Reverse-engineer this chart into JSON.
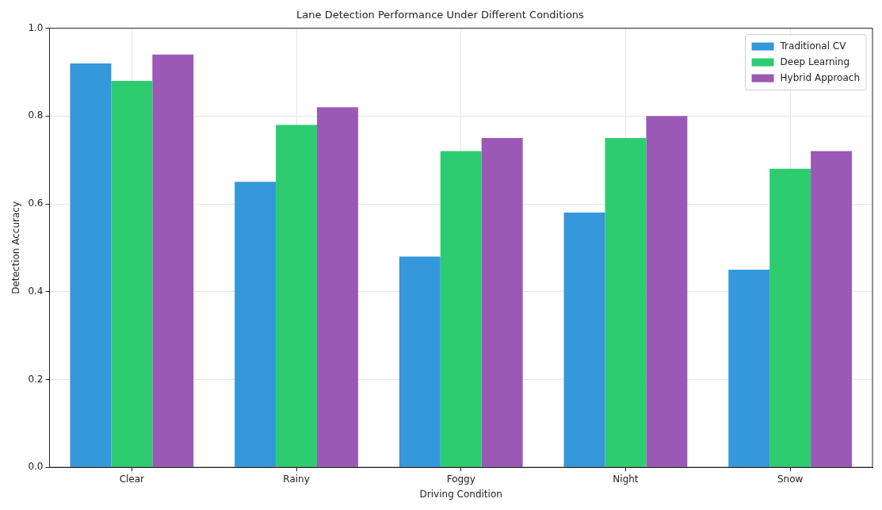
{
  "chart_data": {
    "type": "bar",
    "title": "Lane Detection Performance Under Different Conditions",
    "xlabel": "Driving Condition",
    "ylabel": "Detection Accuracy",
    "categories": [
      "Clear",
      "Rainy",
      "Foggy",
      "Night",
      "Snow"
    ],
    "series": [
      {
        "name": "Traditional CV",
        "color": "#3498db",
        "values": [
          0.92,
          0.65,
          0.48,
          0.58,
          0.45
        ]
      },
      {
        "name": "Deep Learning",
        "color": "#2ecc71",
        "values": [
          0.88,
          0.78,
          0.72,
          0.75,
          0.68
        ]
      },
      {
        "name": "Hybrid Approach",
        "color": "#9b59b6",
        "values": [
          0.94,
          0.82,
          0.75,
          0.8,
          0.72
        ]
      }
    ],
    "ylim": [
      0,
      1
    ],
    "yticks": [
      {
        "value": 0,
        "label": "0.0"
      },
      0.2,
      0.4,
      0.6,
      0.8,
      {
        "value": 1,
        "label": "1.0"
      }
    ],
    "grid": true,
    "legend": "top right"
  }
}
